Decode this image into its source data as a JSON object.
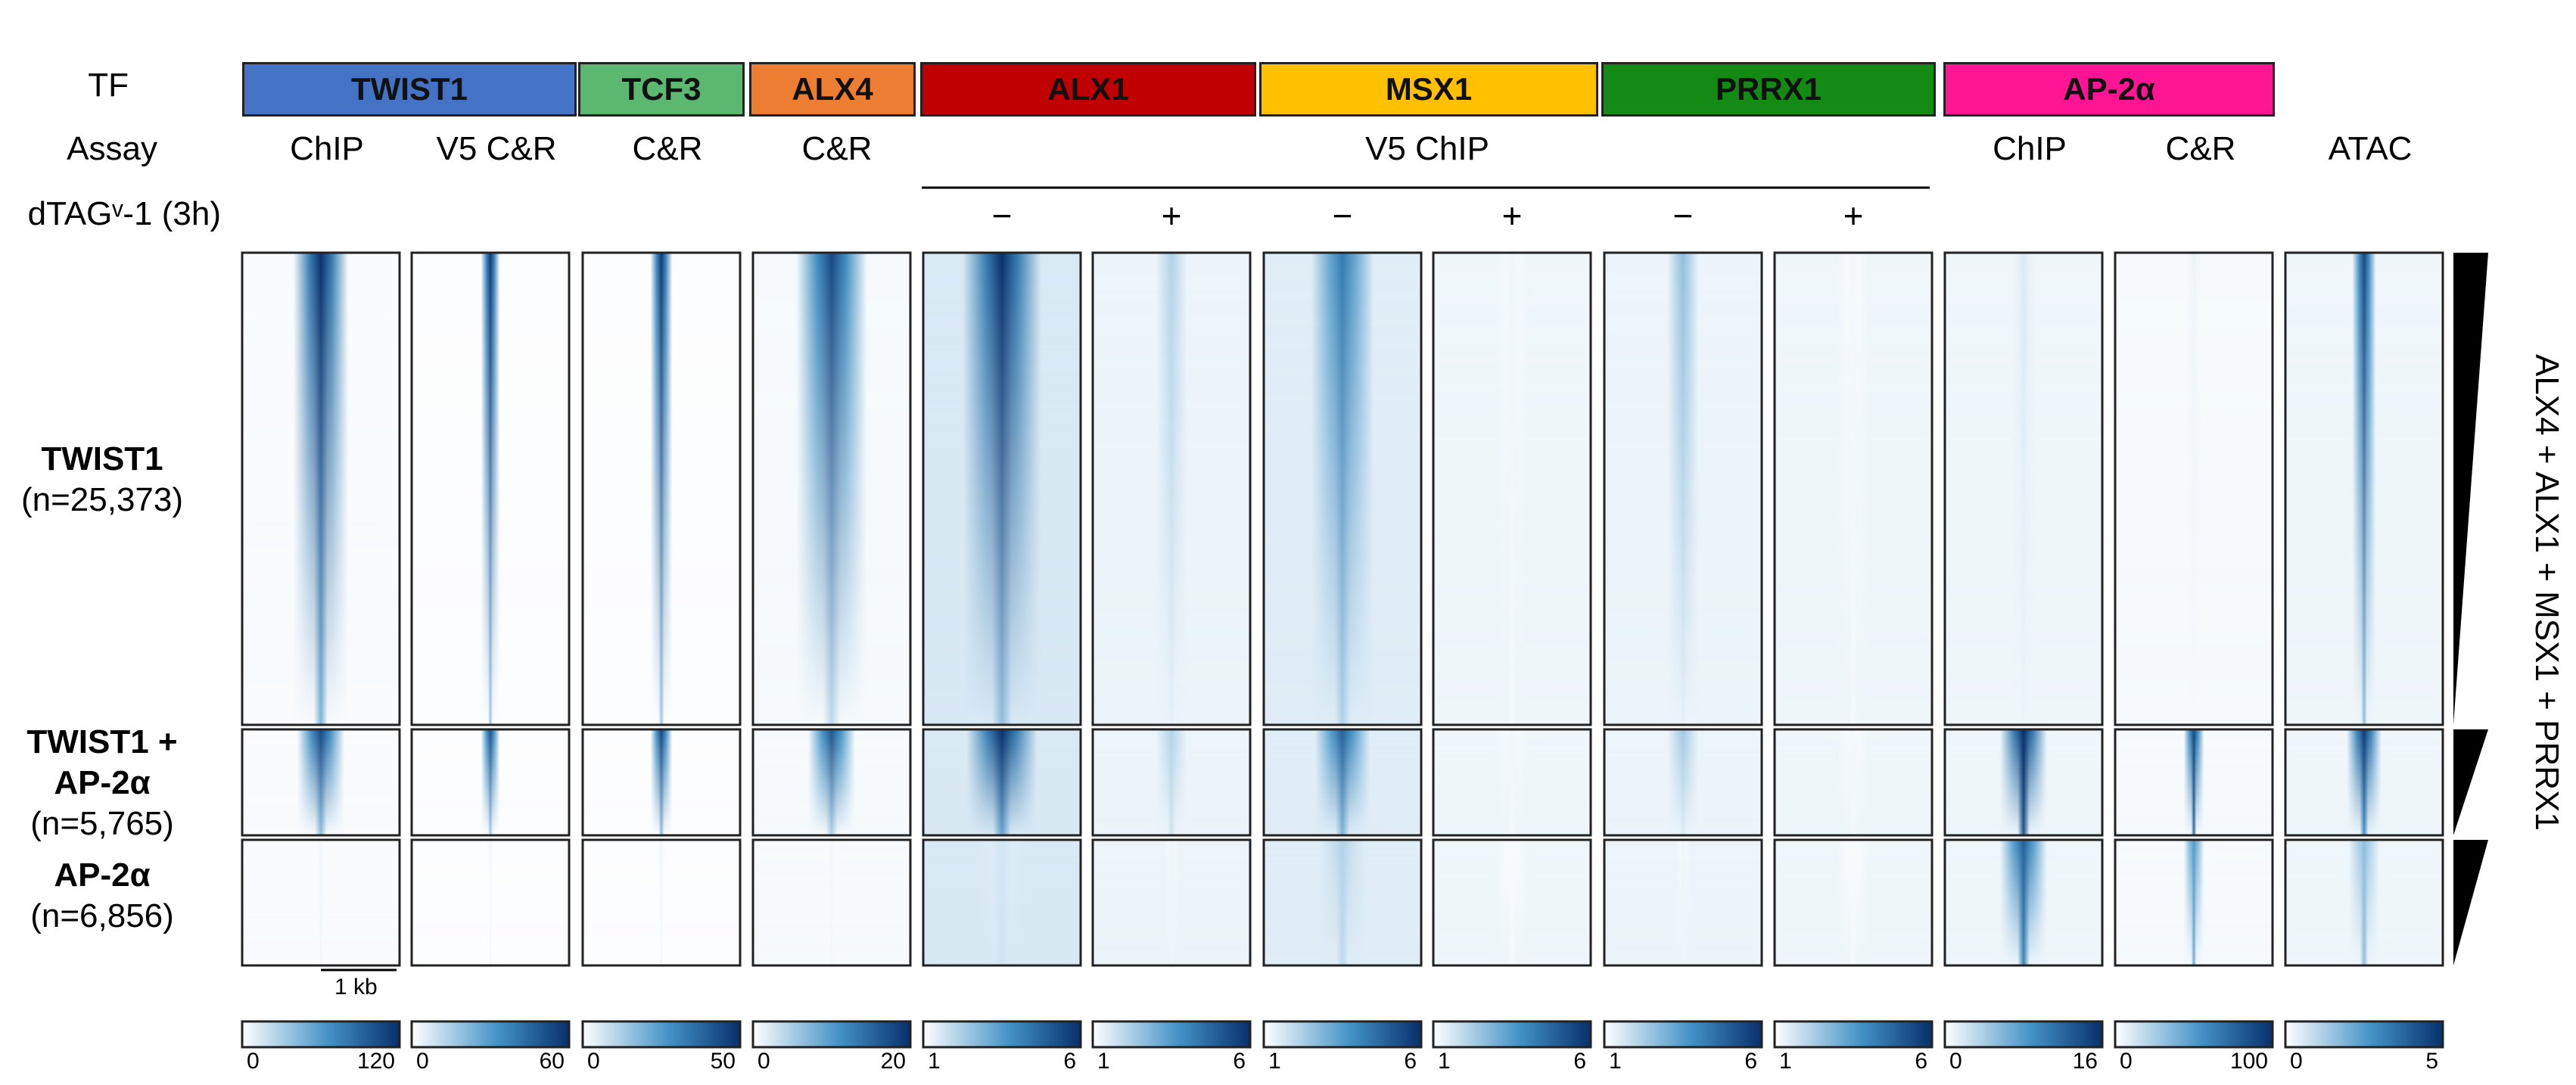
{
  "chart_data": {
    "type": "heatmap",
    "title": "",
    "row_headers": {
      "tf": "TF",
      "assay": "Assay",
      "treatment": "dTAGᵛ-1 (3h)"
    },
    "tf_groups": [
      {
        "name": "TWIST1",
        "color": "#4472c4"
      },
      {
        "name": "TCF3",
        "color": "#5cb870"
      },
      {
        "name": "ALX4",
        "color": "#ed7d31"
      },
      {
        "name": "ALX1",
        "color": "#c00000"
      },
      {
        "name": "MSX1",
        "color": "#ffc000"
      },
      {
        "name": "PRRX1",
        "color": "#138a13"
      },
      {
        "name": "AP-2α",
        "color": "#ff1493"
      }
    ],
    "assay_labels": [
      "ChIP",
      "V5 C&R",
      "C&R",
      "C&R",
      "V5 ChIP",
      "ChIP",
      "C&R",
      "ATAC"
    ],
    "treatment_labels": [
      "−",
      "+",
      "−",
      "+",
      "−",
      "+"
    ],
    "row_groups": [
      {
        "name_lines": [
          "TWIST1"
        ],
        "count": "(n=25,373)"
      },
      {
        "name_lines": [
          "TWIST1 +",
          "AP-2α"
        ],
        "count": "(n=5,765)"
      },
      {
        "name_lines": [
          "AP-2α"
        ],
        "count": "(n=6,856)"
      }
    ],
    "scale_bar": "1 kb",
    "side_label": "ALX4 + ALX1 + MSX1 + PRRX1",
    "colormap": {
      "low": "#ffffff",
      "high": "#08306b"
    },
    "columns": [
      {
        "min": "0",
        "max": "120",
        "signal": [
          [
            1.0,
            0.4
          ],
          [
            0.9,
            0.35
          ],
          [
            0.05,
            0.05
          ]
        ],
        "width": [
          0.35,
          0.3,
          0.05
        ],
        "bg": 0.02
      },
      {
        "min": "0",
        "max": "60",
        "signal": [
          [
            0.95,
            0.3
          ],
          [
            0.85,
            0.3
          ],
          [
            0.04,
            0.04
          ]
        ],
        "width": [
          0.12,
          0.12,
          0.05
        ],
        "bg": 0.01
      },
      {
        "min": "0",
        "max": "50",
        "signal": [
          [
            0.95,
            0.3
          ],
          [
            0.9,
            0.35
          ],
          [
            0.05,
            0.05
          ]
        ],
        "width": [
          0.14,
          0.14,
          0.05
        ],
        "bg": 0.01
      },
      {
        "min": "0",
        "max": "20",
        "signal": [
          [
            0.9,
            0.2
          ],
          [
            0.85,
            0.25
          ],
          [
            0.05,
            0.05
          ]
        ],
        "width": [
          0.45,
          0.3,
          0.05
        ],
        "bg": 0.03
      },
      {
        "min": "1",
        "max": "6",
        "signal": [
          [
            1.0,
            0.35
          ],
          [
            1.0,
            0.5
          ],
          [
            0.15,
            0.15
          ]
        ],
        "width": [
          0.5,
          0.45,
          0.3
        ],
        "bg": 0.12
      },
      {
        "min": "1",
        "max": "6",
        "signal": [
          [
            0.25,
            0.08
          ],
          [
            0.25,
            0.15
          ],
          [
            0.05,
            0.05
          ]
        ],
        "width": [
          0.2,
          0.2,
          0.1
        ],
        "bg": 0.06
      },
      {
        "min": "1",
        "max": "6",
        "signal": [
          [
            0.7,
            0.25
          ],
          [
            0.8,
            0.4
          ],
          [
            0.25,
            0.2
          ]
        ],
        "width": [
          0.4,
          0.35,
          0.3
        ],
        "bg": 0.1
      },
      {
        "min": "1",
        "max": "6",
        "signal": [
          [
            0.05,
            0.03
          ],
          [
            0.05,
            0.03
          ],
          [
            0.03,
            0.03
          ]
        ],
        "width": [
          0.2,
          0.2,
          0.2
        ],
        "bg": 0.05
      },
      {
        "min": "1",
        "max": "6",
        "signal": [
          [
            0.35,
            0.08
          ],
          [
            0.3,
            0.1
          ],
          [
            0.05,
            0.05
          ]
        ],
        "width": [
          0.2,
          0.2,
          0.1
        ],
        "bg": 0.06
      },
      {
        "min": "1",
        "max": "6",
        "signal": [
          [
            0.04,
            0.03
          ],
          [
            0.04,
            0.03
          ],
          [
            0.03,
            0.03
          ]
        ],
        "width": [
          0.2,
          0.2,
          0.2
        ],
        "bg": 0.05
      },
      {
        "min": "0",
        "max": "16",
        "signal": [
          [
            0.12,
            0.06
          ],
          [
            1.0,
            0.85
          ],
          [
            0.8,
            0.65
          ]
        ],
        "width": [
          0.15,
          0.3,
          0.3
        ],
        "bg": 0.05
      },
      {
        "min": "0",
        "max": "100",
        "signal": [
          [
            0.06,
            0.03
          ],
          [
            0.9,
            0.75
          ],
          [
            0.55,
            0.45
          ]
        ],
        "width": [
          0.1,
          0.13,
          0.13
        ],
        "bg": 0.03
      },
      {
        "min": "0",
        "max": "5",
        "signal": [
          [
            0.9,
            0.35
          ],
          [
            0.95,
            0.6
          ],
          [
            0.35,
            0.35
          ]
        ],
        "width": [
          0.15,
          0.22,
          0.2
        ],
        "bg": 0.05
      }
    ]
  }
}
